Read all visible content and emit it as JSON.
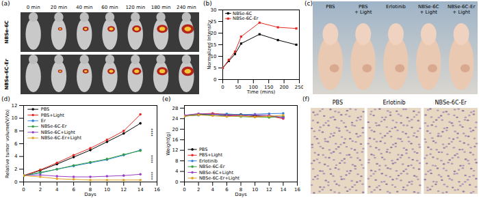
{
  "chart_data": [
    {
      "type": "line",
      "title": "(b)",
      "x_label": "Time (mins)",
      "y_label": "Normalized Intensity",
      "x": [
        0,
        20,
        40,
        60,
        120,
        180,
        240
      ],
      "series": [
        {
          "name": "NBSe-6C",
          "color": "#000000",
          "values": [
            5,
            8,
            11,
            15.5,
            19.5,
            17,
            15
          ]
        },
        {
          "name": "NBSe-6C-Er",
          "color": "#e8261f",
          "values": [
            5,
            8.5,
            12,
            18.5,
            24.5,
            22.5,
            22
          ]
        }
      ],
      "xlim": [
        0,
        250
      ],
      "xticks": [
        0,
        50,
        100,
        150,
        200,
        250
      ],
      "ylim": [
        0,
        30
      ],
      "yticks": [
        0,
        5,
        10,
        15,
        20,
        25,
        30
      ],
      "marker": "square",
      "legend": "upper left"
    },
    {
      "type": "line",
      "title": "(d)",
      "x_label": "Days",
      "y_label": "Relative tumor volume(V/Vo)",
      "x": [
        0,
        2,
        4,
        6,
        8,
        10,
        12,
        14
      ],
      "series": [
        {
          "name": "PBS",
          "color": "#000000",
          "values": [
            1,
            1.8,
            2.8,
            3.9,
            5,
            6.3,
            7.6,
            9.2
          ]
        },
        {
          "name": "PBS+Light",
          "color": "#e8261f",
          "values": [
            1,
            1.9,
            3,
            4.2,
            5.3,
            6.6,
            8,
            10.6
          ]
        },
        {
          "name": "Er",
          "color": "#2f7fd8",
          "values": [
            1,
            1.4,
            2,
            2.5,
            3,
            3.5,
            4.2,
            5
          ]
        },
        {
          "name": "NBSe-6C-Er",
          "color": "#2e9e3e",
          "values": [
            1,
            1.5,
            2,
            2.6,
            3.1,
            3.6,
            4.3,
            4.9
          ]
        },
        {
          "name": "NBSe-6C+Light",
          "color": "#9b3fc6",
          "values": [
            1,
            1.1,
            0.9,
            0.8,
            0.8,
            0.9,
            1,
            1.2
          ]
        },
        {
          "name": "NBSe-6C-Er+Light",
          "color": "#e0a020",
          "values": [
            1,
            0.8,
            0.5,
            0.4,
            0.3,
            0.3,
            0.3,
            0.3
          ]
        }
      ],
      "xlim": [
        0,
        16
      ],
      "xticks": [
        0,
        2,
        4,
        6,
        8,
        10,
        12,
        14,
        16
      ],
      "ylim": [
        0,
        12
      ],
      "yticks": [
        0,
        2,
        4,
        6,
        8,
        10,
        12
      ],
      "marker": "circle",
      "legend": "upper left",
      "annotations": [
        "****",
        "****",
        "****"
      ]
    },
    {
      "type": "line",
      "title": "(e)",
      "x_label": "Days",
      "y_label": "Weight(g)",
      "x": [
        0,
        2,
        4,
        6,
        8,
        10,
        12,
        14
      ],
      "series": [
        {
          "name": "PBS",
          "color": "#000000",
          "values": [
            25,
            25.5,
            25.8,
            25.3,
            25.6,
            25.1,
            24.8,
            24.6
          ]
        },
        {
          "name": "PBS+Light",
          "color": "#e8261f",
          "values": [
            25.2,
            25.8,
            26,
            25.6,
            25.2,
            24.7,
            25,
            24
          ]
        },
        {
          "name": "Erlotinib",
          "color": "#2f7fd8",
          "values": [
            25,
            25.3,
            25.6,
            25.8,
            25.5,
            25.7,
            25.9,
            26
          ]
        },
        {
          "name": "NBSe-6C-Er",
          "color": "#2e9e3e",
          "values": [
            25.1,
            25.6,
            25.3,
            25,
            24.8,
            24.6,
            24.5,
            24.7
          ]
        },
        {
          "name": "NBSe-6C+Light",
          "color": "#9b3fc6",
          "values": [
            25.3,
            25.9,
            25.7,
            25.2,
            25.1,
            25.5,
            25.3,
            24.3
          ]
        },
        {
          "name": "NBSe-6C-Er+Light",
          "color": "#e0a020",
          "values": [
            24.9,
            25.4,
            25.1,
            24.8,
            25,
            24.6,
            24.9,
            25.3
          ]
        }
      ],
      "xlim": [
        0,
        16
      ],
      "xticks": [
        0,
        2,
        4,
        6,
        8,
        10,
        12,
        14,
        16
      ],
      "ylim": [
        0,
        29
      ],
      "yticks": [
        0,
        4,
        8,
        12,
        16,
        20,
        24,
        28
      ],
      "marker": "circle",
      "legend": "lower left"
    }
  ],
  "panels": {
    "a": {
      "label": "(a)",
      "times": [
        "0 min",
        "20 min",
        "40 min",
        "60 min",
        "120 min",
        "180 min",
        "240 min"
      ],
      "rows": [
        "NBSe-6C",
        "NBSe-6C-Er"
      ]
    },
    "c": {
      "label": "(c)",
      "groups": [
        "PBS",
        "PBS + Light",
        "Erlotinib",
        "NBSe-6C + Light",
        "NBSe-6C-Er + Light"
      ]
    },
    "f": {
      "label": "(f)",
      "groups": [
        "PBS",
        "Erlotinib",
        "NBSe-6C-Er"
      ]
    }
  }
}
